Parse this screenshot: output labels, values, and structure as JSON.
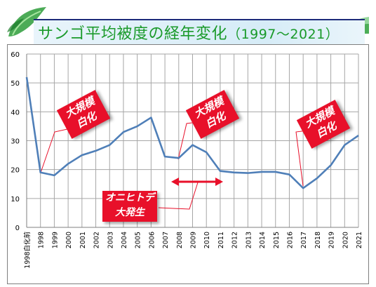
{
  "slide": {
    "title": "サンゴ平均被度の経年変化",
    "title_range": "（1997〜2021）"
  },
  "chart_data": {
    "type": "line",
    "title": "サンゴ平均被度の経年変化（1997〜2021）",
    "categories": [
      "1998白化前",
      "1998",
      "1999",
      "2000",
      "2001",
      "2002",
      "2003",
      "2004",
      "2005",
      "2006",
      "2007",
      "2008",
      "2009",
      "2010",
      "2011",
      "2012",
      "2013",
      "2014",
      "2015",
      "2016",
      "2017",
      "2018",
      "2019",
      "2020",
      "2021"
    ],
    "series": [
      {
        "values": [
          52,
          19,
          18,
          22,
          25,
          26.5,
          28.5,
          33,
          35,
          38,
          24.5,
          24,
          28.5,
          26,
          19.5,
          19,
          18.8,
          19.2,
          19.2,
          18.3,
          13.6,
          17,
          21.5,
          28.5,
          31.8
        ],
        "color": "#4f7fb8"
      }
    ],
    "ylim": [
      0,
      60
    ],
    "yticks": [
      "0",
      "10",
      "20",
      "30",
      "40",
      "50",
      "60"
    ],
    "grid": true,
    "colors": {
      "line": "#4f7fb8",
      "callout": "#e8102a",
      "grid": "#a6a6a6"
    }
  },
  "callouts": {
    "bleach_1998": {
      "line1": "大規模",
      "line2": "白化"
    },
    "bleach_2008": {
      "line1": "大規模",
      "line2": "白化"
    },
    "bleach_2017": {
      "line1": "大規模",
      "line2": "白化"
    },
    "cots": {
      "line1": "オニヒトデ",
      "line2": "大発生"
    }
  }
}
